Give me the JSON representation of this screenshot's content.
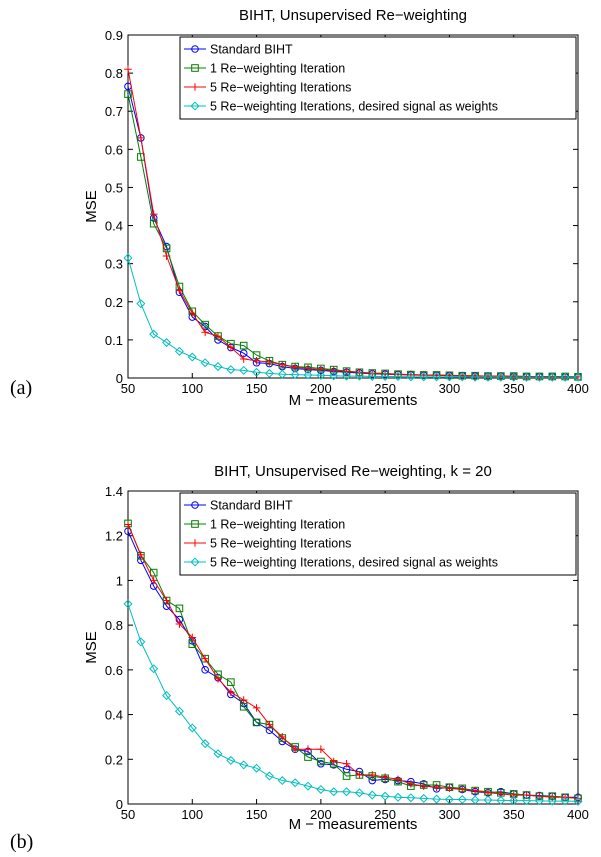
{
  "figure": {
    "panels": [
      "(a)",
      "(b)"
    ]
  },
  "series_style": [
    {
      "color": "#0000ff",
      "marker": "circle"
    },
    {
      "color": "#008000",
      "marker": "square"
    },
    {
      "color": "#ff0000",
      "marker": "plus"
    },
    {
      "color": "#00bfbf",
      "marker": "diamond"
    }
  ],
  "chart_data": [
    {
      "type": "line",
      "title": "BIHT, Unsupervised Re−weighting",
      "xlabel": "M − measurements",
      "ylabel": "MSE",
      "xlim": [
        50,
        400
      ],
      "ylim": [
        0,
        0.9
      ],
      "xticks": [
        50,
        100,
        150,
        200,
        250,
        300,
        350,
        400
      ],
      "yticks": [
        0,
        0.1,
        0.2,
        0.3,
        0.4,
        0.5,
        0.6,
        0.7,
        0.8,
        0.9
      ],
      "ytick_labels": [
        "0",
        "0.1",
        "0.2",
        "0.3",
        "0.4",
        "0.5",
        "0.6",
        "0.7",
        "0.8",
        "0.9"
      ],
      "legend_position": "top-right",
      "x": [
        50,
        60,
        70,
        80,
        90,
        100,
        110,
        120,
        130,
        140,
        150,
        160,
        170,
        180,
        190,
        200,
        210,
        220,
        230,
        240,
        250,
        260,
        270,
        280,
        290,
        300,
        310,
        320,
        330,
        340,
        350,
        360,
        370,
        380,
        390,
        400
      ],
      "series": [
        {
          "name": "Standard BIHT",
          "values": [
            0.765,
            0.63,
            0.42,
            0.345,
            0.225,
            0.16,
            0.135,
            0.1,
            0.08,
            0.065,
            0.04,
            0.038,
            0.03,
            0.025,
            0.022,
            0.02,
            0.017,
            0.015,
            0.013,
            0.011,
            0.01,
            0.009,
            0.008,
            0.007,
            0.007,
            0.006,
            0.006,
            0.005,
            0.005,
            0.005,
            0.004,
            0.004,
            0.004,
            0.004,
            0.003,
            0.003
          ]
        },
        {
          "name": "1 Re−weighting Iteration",
          "values": [
            0.745,
            0.58,
            0.405,
            0.34,
            0.24,
            0.175,
            0.14,
            0.11,
            0.09,
            0.085,
            0.06,
            0.045,
            0.035,
            0.03,
            0.028,
            0.025,
            0.022,
            0.018,
            0.015,
            0.013,
            0.012,
            0.01,
            0.009,
            0.008,
            0.008,
            0.007,
            0.006,
            0.006,
            0.005,
            0.005,
            0.005,
            0.004,
            0.004,
            0.004,
            0.004,
            0.003
          ]
        },
        {
          "name": "5 Re−weighting Iterations",
          "values": [
            0.81,
            0.63,
            0.43,
            0.32,
            0.23,
            0.17,
            0.12,
            0.11,
            0.08,
            0.05,
            0.045,
            0.042,
            0.035,
            0.028,
            0.025,
            0.022,
            0.02,
            0.017,
            0.015,
            0.012,
            0.011,
            0.01,
            0.009,
            0.008,
            0.007,
            0.007,
            0.006,
            0.006,
            0.005,
            0.005,
            0.005,
            0.004,
            0.004,
            0.004,
            0.003,
            0.003
          ]
        },
        {
          "name": "5 Re−weighting Iterations, desired signal as weights",
          "values": [
            0.315,
            0.195,
            0.115,
            0.093,
            0.07,
            0.055,
            0.04,
            0.03,
            0.022,
            0.02,
            0.015,
            0.012,
            0.01,
            0.009,
            0.008,
            0.007,
            0.006,
            0.005,
            0.005,
            0.004,
            0.004,
            0.004,
            0.003,
            0.003,
            0.003,
            0.003,
            0.003,
            0.002,
            0.002,
            0.002,
            0.002,
            0.002,
            0.002,
            0.002,
            0.002,
            0.002
          ]
        }
      ]
    },
    {
      "type": "line",
      "title": "BIHT, Unsupervised Re−weighting, k = 20",
      "xlabel": "M − measurements",
      "ylabel": "MSE",
      "xlim": [
        50,
        400
      ],
      "ylim": [
        0,
        1.4
      ],
      "xticks": [
        50,
        100,
        150,
        200,
        250,
        300,
        350,
        400
      ],
      "yticks": [
        0,
        0.2,
        0.4,
        0.6,
        0.8,
        1,
        1.2,
        1.4
      ],
      "ytick_labels": [
        "0",
        "0.2",
        "0.4",
        "0.6",
        "0.8",
        "1",
        "1.2",
        "1.4"
      ],
      "legend_position": "top-right",
      "x": [
        50,
        60,
        70,
        80,
        90,
        100,
        110,
        120,
        130,
        140,
        150,
        160,
        170,
        180,
        190,
        200,
        210,
        220,
        230,
        240,
        250,
        260,
        270,
        280,
        290,
        300,
        310,
        320,
        330,
        340,
        350,
        360,
        370,
        380,
        390,
        400
      ],
      "series": [
        {
          "name": "Standard BIHT",
          "values": [
            1.22,
            1.09,
            0.975,
            0.885,
            0.825,
            0.73,
            0.6,
            0.565,
            0.49,
            0.45,
            0.365,
            0.33,
            0.28,
            0.245,
            0.235,
            0.18,
            0.175,
            0.155,
            0.145,
            0.105,
            0.11,
            0.105,
            0.1,
            0.09,
            0.068,
            0.075,
            0.065,
            0.055,
            0.05,
            0.055,
            0.045,
            0.04,
            0.038,
            0.035,
            0.03,
            0.03
          ]
        },
        {
          "name": "1 Re−weighting Iteration",
          "values": [
            1.255,
            1.11,
            1.035,
            0.91,
            0.875,
            0.715,
            0.65,
            0.58,
            0.545,
            0.435,
            0.365,
            0.355,
            0.295,
            0.255,
            0.21,
            0.19,
            0.18,
            0.125,
            0.13,
            0.125,
            0.115,
            0.1,
            0.08,
            0.085,
            0.085,
            0.075,
            0.07,
            0.06,
            0.055,
            0.05,
            0.045,
            0.04,
            0.035,
            0.035,
            0.03,
            0.025
          ]
        },
        {
          "name": "5 Re−weighting Iterations",
          "values": [
            1.25,
            1.115,
            1.0,
            0.91,
            0.805,
            0.745,
            0.65,
            0.56,
            0.5,
            0.465,
            0.43,
            0.355,
            0.3,
            0.245,
            0.245,
            0.245,
            0.19,
            0.18,
            0.13,
            0.13,
            0.12,
            0.11,
            0.09,
            0.08,
            0.075,
            0.07,
            0.065,
            0.06,
            0.05,
            0.045,
            0.04,
            0.04,
            0.035,
            0.03,
            0.03,
            0.025
          ]
        },
        {
          "name": "5 Re−weighting Iterations, desired signal as weights",
          "values": [
            0.895,
            0.725,
            0.605,
            0.485,
            0.415,
            0.34,
            0.27,
            0.225,
            0.195,
            0.175,
            0.16,
            0.125,
            0.105,
            0.095,
            0.08,
            0.065,
            0.055,
            0.055,
            0.05,
            0.04,
            0.035,
            0.03,
            0.028,
            0.025,
            0.022,
            0.02,
            0.02,
            0.018,
            0.018,
            0.016,
            0.015,
            0.015,
            0.014,
            0.013,
            0.013,
            0.012
          ]
        }
      ]
    }
  ]
}
